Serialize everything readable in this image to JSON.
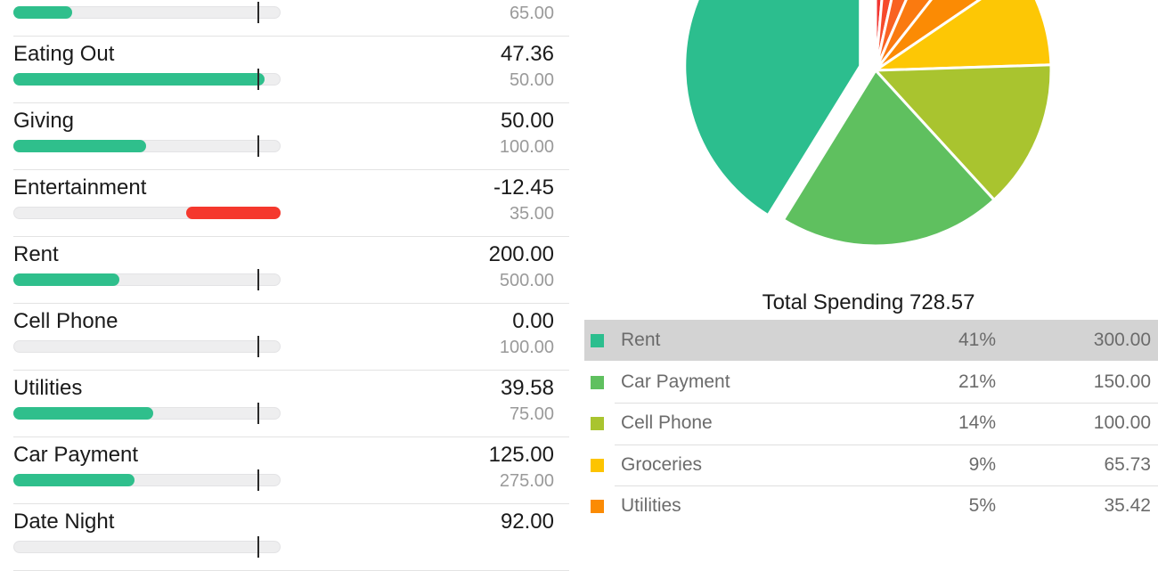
{
  "colors": {
    "bar_fill_green": "#2fbf8c",
    "bar_over_red": "#f5382d",
    "bar_track": "#eeeeef",
    "pace_tick": "#2a2a2a",
    "selected_row_bg": "#d3d3d3",
    "legend_text": "#6b6b6b",
    "budget_text": "#9a9a9a"
  },
  "budget": {
    "pace_tick_pct": 91.7,
    "rows": [
      {
        "label": "",
        "remaining": "",
        "budget": "65.00",
        "fill_pct": 22.2,
        "over": false,
        "over_pct": 0
      },
      {
        "label": "Eating Out",
        "remaining": "47.36",
        "budget": "50.00",
        "fill_pct": 94.7,
        "over": false,
        "over_pct": 0
      },
      {
        "label": "Giving",
        "remaining": "50.00",
        "budget": "100.00",
        "fill_pct": 50.0,
        "over": false,
        "over_pct": 0
      },
      {
        "label": "Entertainment",
        "remaining": "-12.45",
        "budget": "35.00",
        "fill_pct": 0,
        "over": true,
        "over_pct": 35.6
      },
      {
        "label": "Rent",
        "remaining": "200.00",
        "budget": "500.00",
        "fill_pct": 40.0,
        "over": false,
        "over_pct": 0
      },
      {
        "label": "Cell Phone",
        "remaining": "0.00",
        "budget": "100.00",
        "fill_pct": 0,
        "over": false,
        "over_pct": 0
      },
      {
        "label": "Utilities",
        "remaining": "39.58",
        "budget": "75.00",
        "fill_pct": 52.8,
        "over": false,
        "over_pct": 0
      },
      {
        "label": "Car Payment",
        "remaining": "125.00",
        "budget": "275.00",
        "fill_pct": 45.5,
        "over": false,
        "over_pct": 0
      },
      {
        "label": "Date Night",
        "remaining": "92.00",
        "budget": "",
        "fill_pct": 0,
        "over": false,
        "over_pct": 0
      }
    ]
  },
  "spending": {
    "title": "Total Spending 728.57",
    "legend": [
      {
        "label": "Rent",
        "percent": "41%",
        "value": "300.00",
        "color": "#2cbe8e",
        "selected": true
      },
      {
        "label": "Car Payment",
        "percent": "21%",
        "value": "150.00",
        "color": "#5fc05f",
        "selected": false
      },
      {
        "label": "Cell Phone",
        "percent": "14%",
        "value": "100.00",
        "color": "#a9c42f",
        "selected": false
      },
      {
        "label": "Groceries",
        "percent": "9%",
        "value": "65.73",
        "color": "#fdc400",
        "selected": false
      },
      {
        "label": "Utilities",
        "percent": "5%",
        "value": "35.42",
        "color": "#fb8b04",
        "selected": false
      }
    ]
  },
  "chart_data": {
    "type": "pie",
    "title": "Total Spending 728.57",
    "total": 728.57,
    "legend_position": "bottom",
    "start_angle_deg_from_north": 0,
    "order": "largest-first-counterclockwise-from-north",
    "slices": [
      {
        "label": "Rent",
        "percent": 41.2,
        "value": 300.0,
        "color": "#2cbe8e",
        "exploded": true
      },
      {
        "label": "Car Payment",
        "percent": 20.6,
        "value": 150.0,
        "color": "#5fc05f",
        "exploded": false
      },
      {
        "label": "Cell Phone",
        "percent": 13.7,
        "value": 100.0,
        "color": "#a9c42f",
        "exploded": false
      },
      {
        "label": "Groceries",
        "percent": 9.0,
        "value": 65.73,
        "color": "#fdc705",
        "exploded": false
      },
      {
        "label": "Utilities",
        "percent": 4.9,
        "value": 35.42,
        "color": "#fb8b04",
        "exploded": false
      },
      {
        "label": "",
        "percent": 4.1,
        "value": null,
        "color": "#fa7a10",
        "exploded": false
      },
      {
        "label": "",
        "percent": 3.0,
        "value": null,
        "color": "#f96222",
        "exploded": false
      },
      {
        "label": "",
        "percent": 2.1,
        "value": null,
        "color": "#f64a2c",
        "exploded": false
      },
      {
        "label": "",
        "percent": 1.4,
        "value": null,
        "color": "#f23530",
        "exploded": false
      }
    ]
  }
}
